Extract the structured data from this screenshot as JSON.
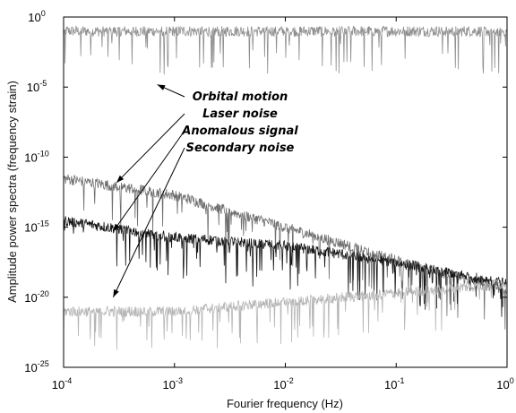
{
  "chart_data": {
    "type": "line",
    "xscale": "log",
    "yscale": "log",
    "xlim": [
      0.0001,
      1
    ],
    "ylim": [
      1e-25,
      1
    ],
    "xlabel": "Fourier frequency (Hz)",
    "ylabel": "Amplitude power spectra (frequency strain)",
    "x_ticks": [
      {
        "base": "10",
        "exp": "-4",
        "value": 0.0001
      },
      {
        "base": "10",
        "exp": "-3",
        "value": 0.001
      },
      {
        "base": "10",
        "exp": "-2",
        "value": 0.01
      },
      {
        "base": "10",
        "exp": "-1",
        "value": 0.1
      },
      {
        "base": "10",
        "exp": "0",
        "value": 1
      }
    ],
    "y_ticks": [
      {
        "base": "10",
        "exp": "0",
        "value": 1
      },
      {
        "base": "10",
        "exp": "-5",
        "value": 1e-05
      },
      {
        "base": "10",
        "exp": "-10",
        "value": 1e-10
      },
      {
        "base": "10",
        "exp": "-15",
        "value": 1e-15
      },
      {
        "base": "10",
        "exp": "-20",
        "value": 1e-20
      },
      {
        "base": "10",
        "exp": "-25",
        "value": 1e-25
      }
    ],
    "grid": false,
    "annotations": [
      {
        "text": "Orbital motion",
        "target_x": 0.0007,
        "target_y": 1.5e-05
      },
      {
        "text": "Laser noise",
        "target_x": 0.0003,
        "target_y": 1.5e-12
      },
      {
        "text": "Anomalous signal",
        "target_x": 0.00028,
        "target_y": 5e-16
      },
      {
        "text": "Secondary noise",
        "target_x": 0.00028,
        "target_y": 1e-20
      }
    ],
    "series": [
      {
        "color": "#8f8f8f",
        "x": [
          0.0001,
          0.001,
          0.01,
          0.1,
          1
        ],
        "y": [
          0.1,
          0.1,
          0.1,
          0.1,
          0.1
        ]
      },
      {
        "color": "#6e6e6e",
        "x": [
          0.0001,
          0.001,
          0.01,
          0.1,
          1
        ],
        "y": [
          3e-12,
          2e-13,
          1e-15,
          5e-18,
          3e-20
        ]
      },
      {
        "color": "#151515",
        "x": [
          0.0001,
          0.001,
          0.01,
          0.1,
          1
        ],
        "y": [
          3e-15,
          2e-16,
          5e-17,
          3e-18,
          1e-19
        ]
      },
      {
        "color": "#b5b5b5",
        "x": [
          0.0001,
          0.001,
          0.01,
          0.1,
          1
        ],
        "y": [
          1e-21,
          1e-21,
          5e-21,
          2e-20,
          1e-19
        ]
      }
    ]
  }
}
